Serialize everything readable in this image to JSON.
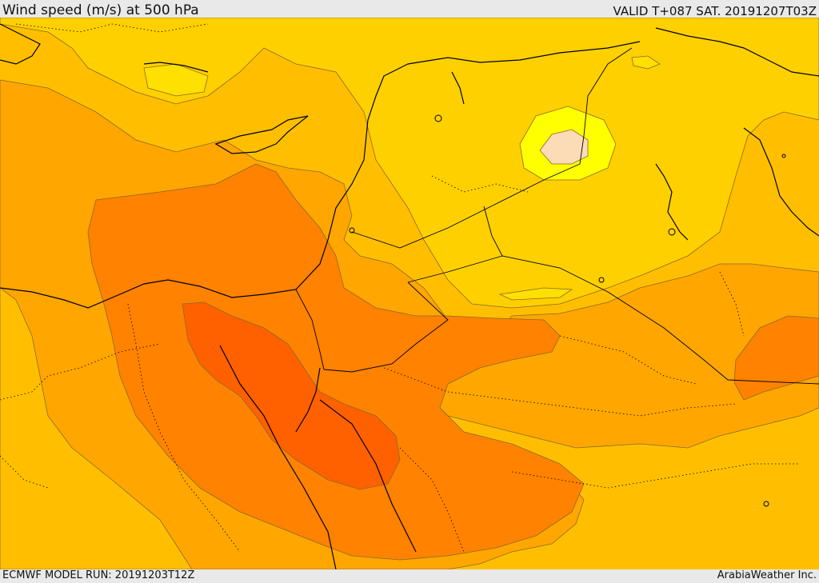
{
  "header": {
    "title": "Wind speed (m/s) at 500 hPa",
    "valid_time": "VALID T+087 SAT. 20191207T03Z"
  },
  "footer": {
    "model_run": "ECMWF MODEL RUN: 20191203T12Z",
    "credit": "ArabiaWeather Inc."
  },
  "colors": {
    "band_1": "#ffe000",
    "band_2": "#ffd000",
    "band_3": "#ffbf00",
    "band_4": "#ffa600",
    "band_5": "#ff8200",
    "band_6": "#ff6000",
    "low_inner": "#ffff00",
    "low_core": "#fbdcb6",
    "coastline": "#000000",
    "border": "#000000"
  }
}
